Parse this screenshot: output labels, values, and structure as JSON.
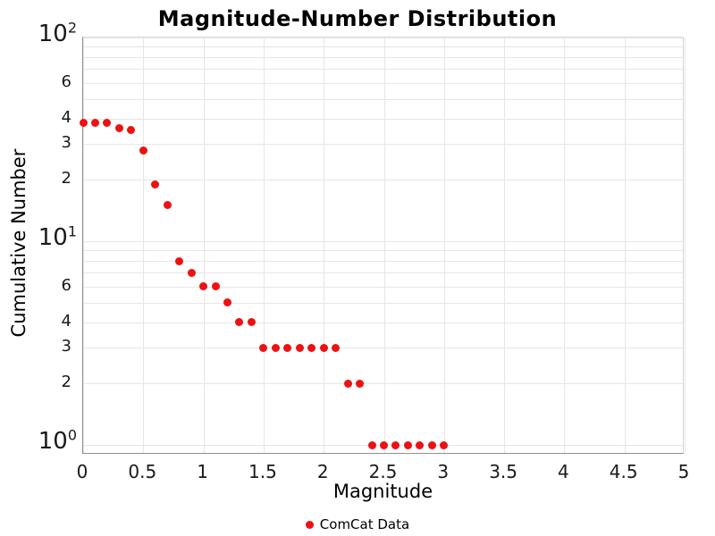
{
  "chart_data": {
    "type": "scatter",
    "title": "Magnitude-Number Distribution",
    "xlabel": "Magnitude",
    "ylabel": "Cumulative Number",
    "x_scale": "linear",
    "y_scale": "log",
    "xlim": [
      0,
      5
    ],
    "ylim": [
      0.895,
      100
    ],
    "grid": true,
    "legend_position": "bottom-center",
    "x_ticks": [
      {
        "value": 0,
        "label": "0"
      },
      {
        "value": 0.5,
        "label": "0.5"
      },
      {
        "value": 1,
        "label": "1"
      },
      {
        "value": 1.5,
        "label": "1.5"
      },
      {
        "value": 2,
        "label": "2"
      },
      {
        "value": 2.5,
        "label": "2.5"
      },
      {
        "value": 3,
        "label": "3"
      },
      {
        "value": 3.5,
        "label": "3.5"
      },
      {
        "value": 4,
        "label": "4"
      },
      {
        "value": 4.5,
        "label": "4.5"
      },
      {
        "value": 5,
        "label": "5"
      }
    ],
    "y_major_ticks": [
      {
        "value": 100,
        "base": "10",
        "exponent": "2"
      },
      {
        "value": 10,
        "base": "10",
        "exponent": "1"
      },
      {
        "value": 1,
        "base": "10",
        "exponent": "0"
      }
    ],
    "y_minor_tick_labels": [
      {
        "value": 60,
        "label": "6"
      },
      {
        "value": 40,
        "label": "4"
      },
      {
        "value": 30,
        "label": "3"
      },
      {
        "value": 20,
        "label": "2"
      },
      {
        "value": 6,
        "label": "6"
      },
      {
        "value": 4,
        "label": "4"
      },
      {
        "value": 3,
        "label": "3"
      },
      {
        "value": 2,
        "label": "2"
      }
    ],
    "y_gridlines": [
      100,
      90,
      80,
      70,
      60,
      50,
      40,
      30,
      20,
      10,
      9,
      8,
      7,
      6,
      5,
      4,
      3,
      2,
      1
    ],
    "series": [
      {
        "name": "ComCat Data",
        "color": "#ee1111",
        "marker": "circle",
        "x": [
          0.0,
          0.1,
          0.2,
          0.3,
          0.4,
          0.5,
          0.6,
          0.7,
          0.8,
          0.9,
          1.0,
          1.1,
          1.2,
          1.3,
          1.4,
          1.5,
          1.6,
          1.7,
          1.8,
          1.9,
          2.0,
          2.1,
          2.2,
          2.3,
          2.4,
          2.5,
          2.6,
          2.7,
          2.8,
          2.9,
          3.0
        ],
        "y": [
          38,
          38,
          38,
          36,
          35,
          28,
          19,
          15,
          8,
          7,
          6,
          6,
          5,
          4,
          4,
          3,
          3,
          3,
          3,
          3,
          3,
          3,
          2,
          2,
          1,
          1,
          1,
          1,
          1,
          1,
          1
        ]
      }
    ],
    "colors": {
      "grid": "#e6e6e6",
      "axis": "#8f8f8f",
      "text": "#1a1a1a",
      "marker": "#ee1111"
    }
  }
}
